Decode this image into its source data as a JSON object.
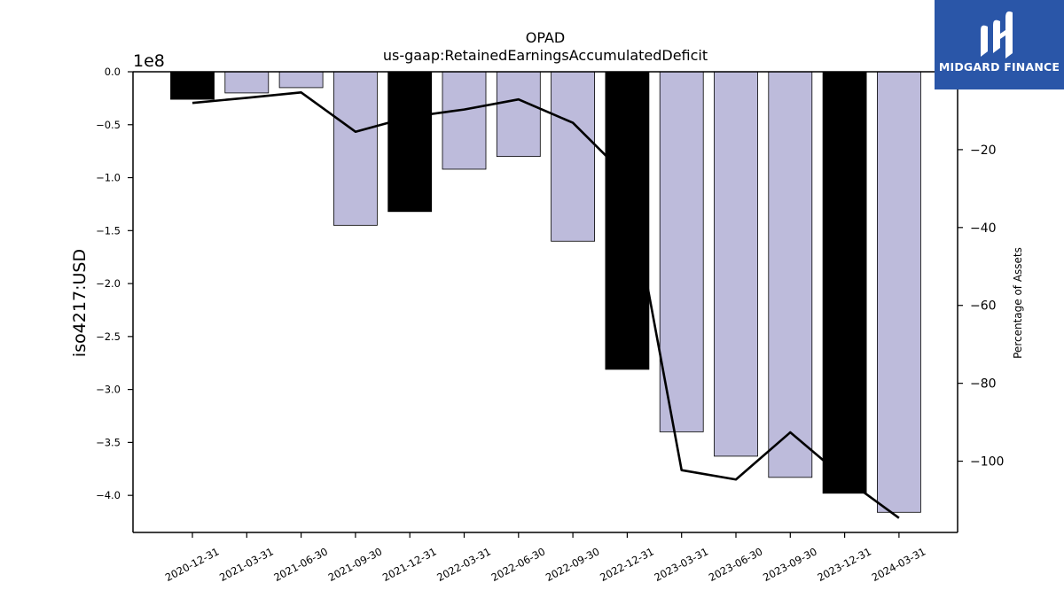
{
  "chart_data": {
    "type": "bar+line",
    "title": "OPAD",
    "subtitle": "us-gaap:RetainedEarningsAccumulatedDeficit",
    "ylabel": "iso4217:USD",
    "y2label": "Percentage of Assets",
    "y_offset_label": "1e8",
    "ylim": [
      -4.35,
      0.0
    ],
    "y2lim": [
      -118.3,
      0.0
    ],
    "y_ticks": [
      "0.0",
      "−0.5",
      "−1.0",
      "−1.5",
      "−2.0",
      "−2.5",
      "−3.0",
      "−3.5",
      "−4.0"
    ],
    "y_tick_values": [
      0.0,
      -0.5,
      -1.0,
      -1.5,
      -2.0,
      -2.5,
      -3.0,
      -3.5,
      -4.0
    ],
    "y2_ticks": [
      "−20",
      "−40",
      "−60",
      "−80",
      "−100"
    ],
    "y2_tick_values": [
      -20,
      -40,
      -60,
      -80,
      -100
    ],
    "categories": [
      "2020-12-31",
      "2021-03-31",
      "2021-06-30",
      "2021-09-30",
      "2021-12-31",
      "2022-03-31",
      "2022-06-30",
      "2022-09-30",
      "2022-12-31",
      "2023-03-31",
      "2023-06-30",
      "2023-09-30",
      "2023-12-31",
      "2024-03-31"
    ],
    "series": [
      {
        "kind": "bar",
        "unit_scale": "1e8",
        "values": [
          -0.26,
          -0.2,
          -0.15,
          -1.45,
          -1.32,
          -0.92,
          -0.8,
          -1.6,
          -2.81,
          -3.4,
          -3.63,
          -3.83,
          -3.98,
          -4.16
        ],
        "colors": [
          "#000000",
          "#bdbbdb",
          "#bdbbdb",
          "#bdbbdb",
          "#000000",
          "#bdbbdb",
          "#bdbbdb",
          "#bdbbdb",
          "#000000",
          "#bdbbdb",
          "#bdbbdb",
          "#bdbbdb",
          "#000000",
          "#bdbbdb"
        ]
      },
      {
        "kind": "line",
        "axis": "right",
        "color": "#000000",
        "values": [
          -8.0,
          -6.7,
          -5.3,
          -15.4,
          -11.6,
          -9.7,
          -7.1,
          -13.1,
          -27.0,
          -102.3,
          -104.7,
          -92.6,
          -104.4,
          -114.6
        ]
      }
    ],
    "grid": false,
    "legend": "none"
  },
  "logo": {
    "text": "MIDGARD FINANCE",
    "background": "#2a56a8",
    "foreground": "#ffffff"
  }
}
